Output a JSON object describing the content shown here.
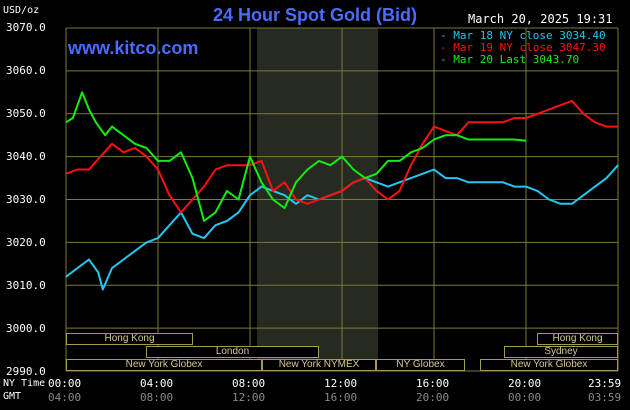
{
  "header": {
    "title": "24 Hour Spot Gold (Bid)",
    "site": "www.kitco.com",
    "timestamp": "March 20, 2025 19:31",
    "y_unit": "USD/oz"
  },
  "colors": {
    "title": "#4a6cff",
    "site": "#4a6cff",
    "mar18": "#22c7f2",
    "mar19": "#ff1010",
    "mar20": "#10ee10",
    "grid": "#7a7a3a",
    "shade": "#262a20",
    "session_border": "#a59a4f"
  },
  "legend": [
    {
      "label": "Mar 18 NY close 3034.40",
      "color": "#22c7f2"
    },
    {
      "label": "Mar 19 NY close 3047.30",
      "color": "#ff1010"
    },
    {
      "label": "Mar 20 Last 3043.70",
      "color": "#10ee10"
    }
  ],
  "sessions": {
    "row1": [
      "Hong Kong",
      "Hong Kong"
    ],
    "row2": [
      "London",
      "Sydney"
    ],
    "row3": [
      "New York Globex",
      "New York NYMEX",
      "NY Globex",
      "New York Globex"
    ]
  },
  "x_axis": {
    "row1_label": "NY Time",
    "row2_label": "GMT",
    "ny_ticks": [
      "00:00",
      "04:00",
      "08:00",
      "12:00",
      "16:00",
      "20:00",
      "23:59"
    ],
    "gmt_ticks": [
      "04:00",
      "08:00",
      "12:00",
      "16:00",
      "20:00",
      "00:00",
      "03:59"
    ]
  },
  "chart_data": {
    "type": "line",
    "title": "24 Hour Spot Gold (Bid)",
    "ylabel": "USD/oz",
    "ylim": [
      2990,
      3070
    ],
    "xlim_hours": [
      0,
      24
    ],
    "yticks": [
      "3070.0",
      "3060.0",
      "3050.0",
      "3040.0",
      "3030.0",
      "3020.0",
      "3010.0",
      "3000.0",
      "2990.0"
    ],
    "grid": true,
    "legend_position": "top-right",
    "series": [
      {
        "name": "Mar 18 NY close 3034.40",
        "color": "#22c7f2",
        "x": [
          0,
          0.5,
          1,
          1.4,
          1.6,
          2,
          2.5,
          3,
          3.5,
          4,
          4.5,
          5,
          5.5,
          6,
          6.5,
          7,
          7.5,
          8,
          8.5,
          9,
          9.5,
          10,
          10.5,
          11,
          11.5,
          12,
          12.5,
          13,
          13.5,
          14,
          14.5,
          15,
          15.5,
          16,
          16.5,
          17,
          17.5,
          18,
          18.5,
          19,
          19.5,
          20,
          20.5,
          21,
          21.5,
          22,
          22.5,
          23,
          23.5,
          24
        ],
        "y": [
          3012,
          3014,
          3016,
          3013,
          3009,
          3014,
          3016,
          3018,
          3020,
          3021,
          3024,
          3027,
          3022,
          3021,
          3024,
          3025,
          3027,
          3031,
          3033,
          3032,
          3031,
          3029,
          3031,
          3030,
          3031,
          3032,
          3034,
          3035,
          3034,
          3033,
          3034,
          3035,
          3036,
          3037,
          3035,
          3035,
          3034,
          3034,
          3034,
          3034,
          3033,
          3033,
          3032,
          3030,
          3029,
          3029,
          3031,
          3033,
          3035,
          3038
        ]
      },
      {
        "name": "Mar 19 NY close 3047.30",
        "color": "#ff1010",
        "x": [
          0,
          0.5,
          1,
          1.5,
          2,
          2.5,
          3,
          3.5,
          4,
          4.5,
          5,
          5.5,
          6,
          6.5,
          7,
          7.5,
          8,
          8.5,
          9,
          9.5,
          10,
          10.5,
          11,
          11.5,
          12,
          12.5,
          13,
          13.5,
          14,
          14.5,
          15,
          15.5,
          16,
          16.5,
          17,
          17.5,
          18,
          18.5,
          19,
          19.5,
          20,
          20.5,
          21,
          21.5,
          22,
          22.5,
          23,
          23.5,
          24
        ],
        "y": [
          3036,
          3037,
          3037,
          3040,
          3043,
          3041,
          3042,
          3040,
          3037,
          3031,
          3027,
          3030,
          3033,
          3037,
          3038,
          3038,
          3038,
          3039,
          3032,
          3034,
          3030,
          3029,
          3030,
          3031,
          3032,
          3034,
          3035,
          3032,
          3030,
          3032,
          3038,
          3043,
          3047,
          3046,
          3045,
          3048,
          3048,
          3048,
          3048,
          3049,
          3049,
          3050,
          3051,
          3052,
          3053,
          3050,
          3048,
          3047,
          3047
        ]
      },
      {
        "name": "Mar 20 Last 3043.70",
        "color": "#10ee10",
        "x": [
          0,
          0.3,
          0.7,
          1,
          1.3,
          1.7,
          2,
          2.5,
          3,
          3.5,
          4,
          4.5,
          5,
          5.5,
          6,
          6.5,
          7,
          7.5,
          8,
          8.5,
          9,
          9.5,
          10,
          10.5,
          11,
          11.5,
          12,
          12.5,
          13,
          13.5,
          14,
          14.5,
          15,
          15.5,
          16,
          16.5,
          17,
          17.5,
          18,
          18.5,
          19,
          19.5,
          20
        ],
        "y": [
          3048,
          3049,
          3055,
          3051,
          3048,
          3045,
          3047,
          3045,
          3043,
          3042,
          3039,
          3039,
          3041,
          3035,
          3025,
          3027,
          3032,
          3030,
          3040,
          3034,
          3030,
          3028,
          3034,
          3037,
          3039,
          3038,
          3040,
          3037,
          3035,
          3036,
          3039,
          3039,
          3041,
          3042,
          3044,
          3045,
          3045,
          3044,
          3044,
          3044,
          3044,
          3044,
          3043.7
        ]
      }
    ]
  }
}
